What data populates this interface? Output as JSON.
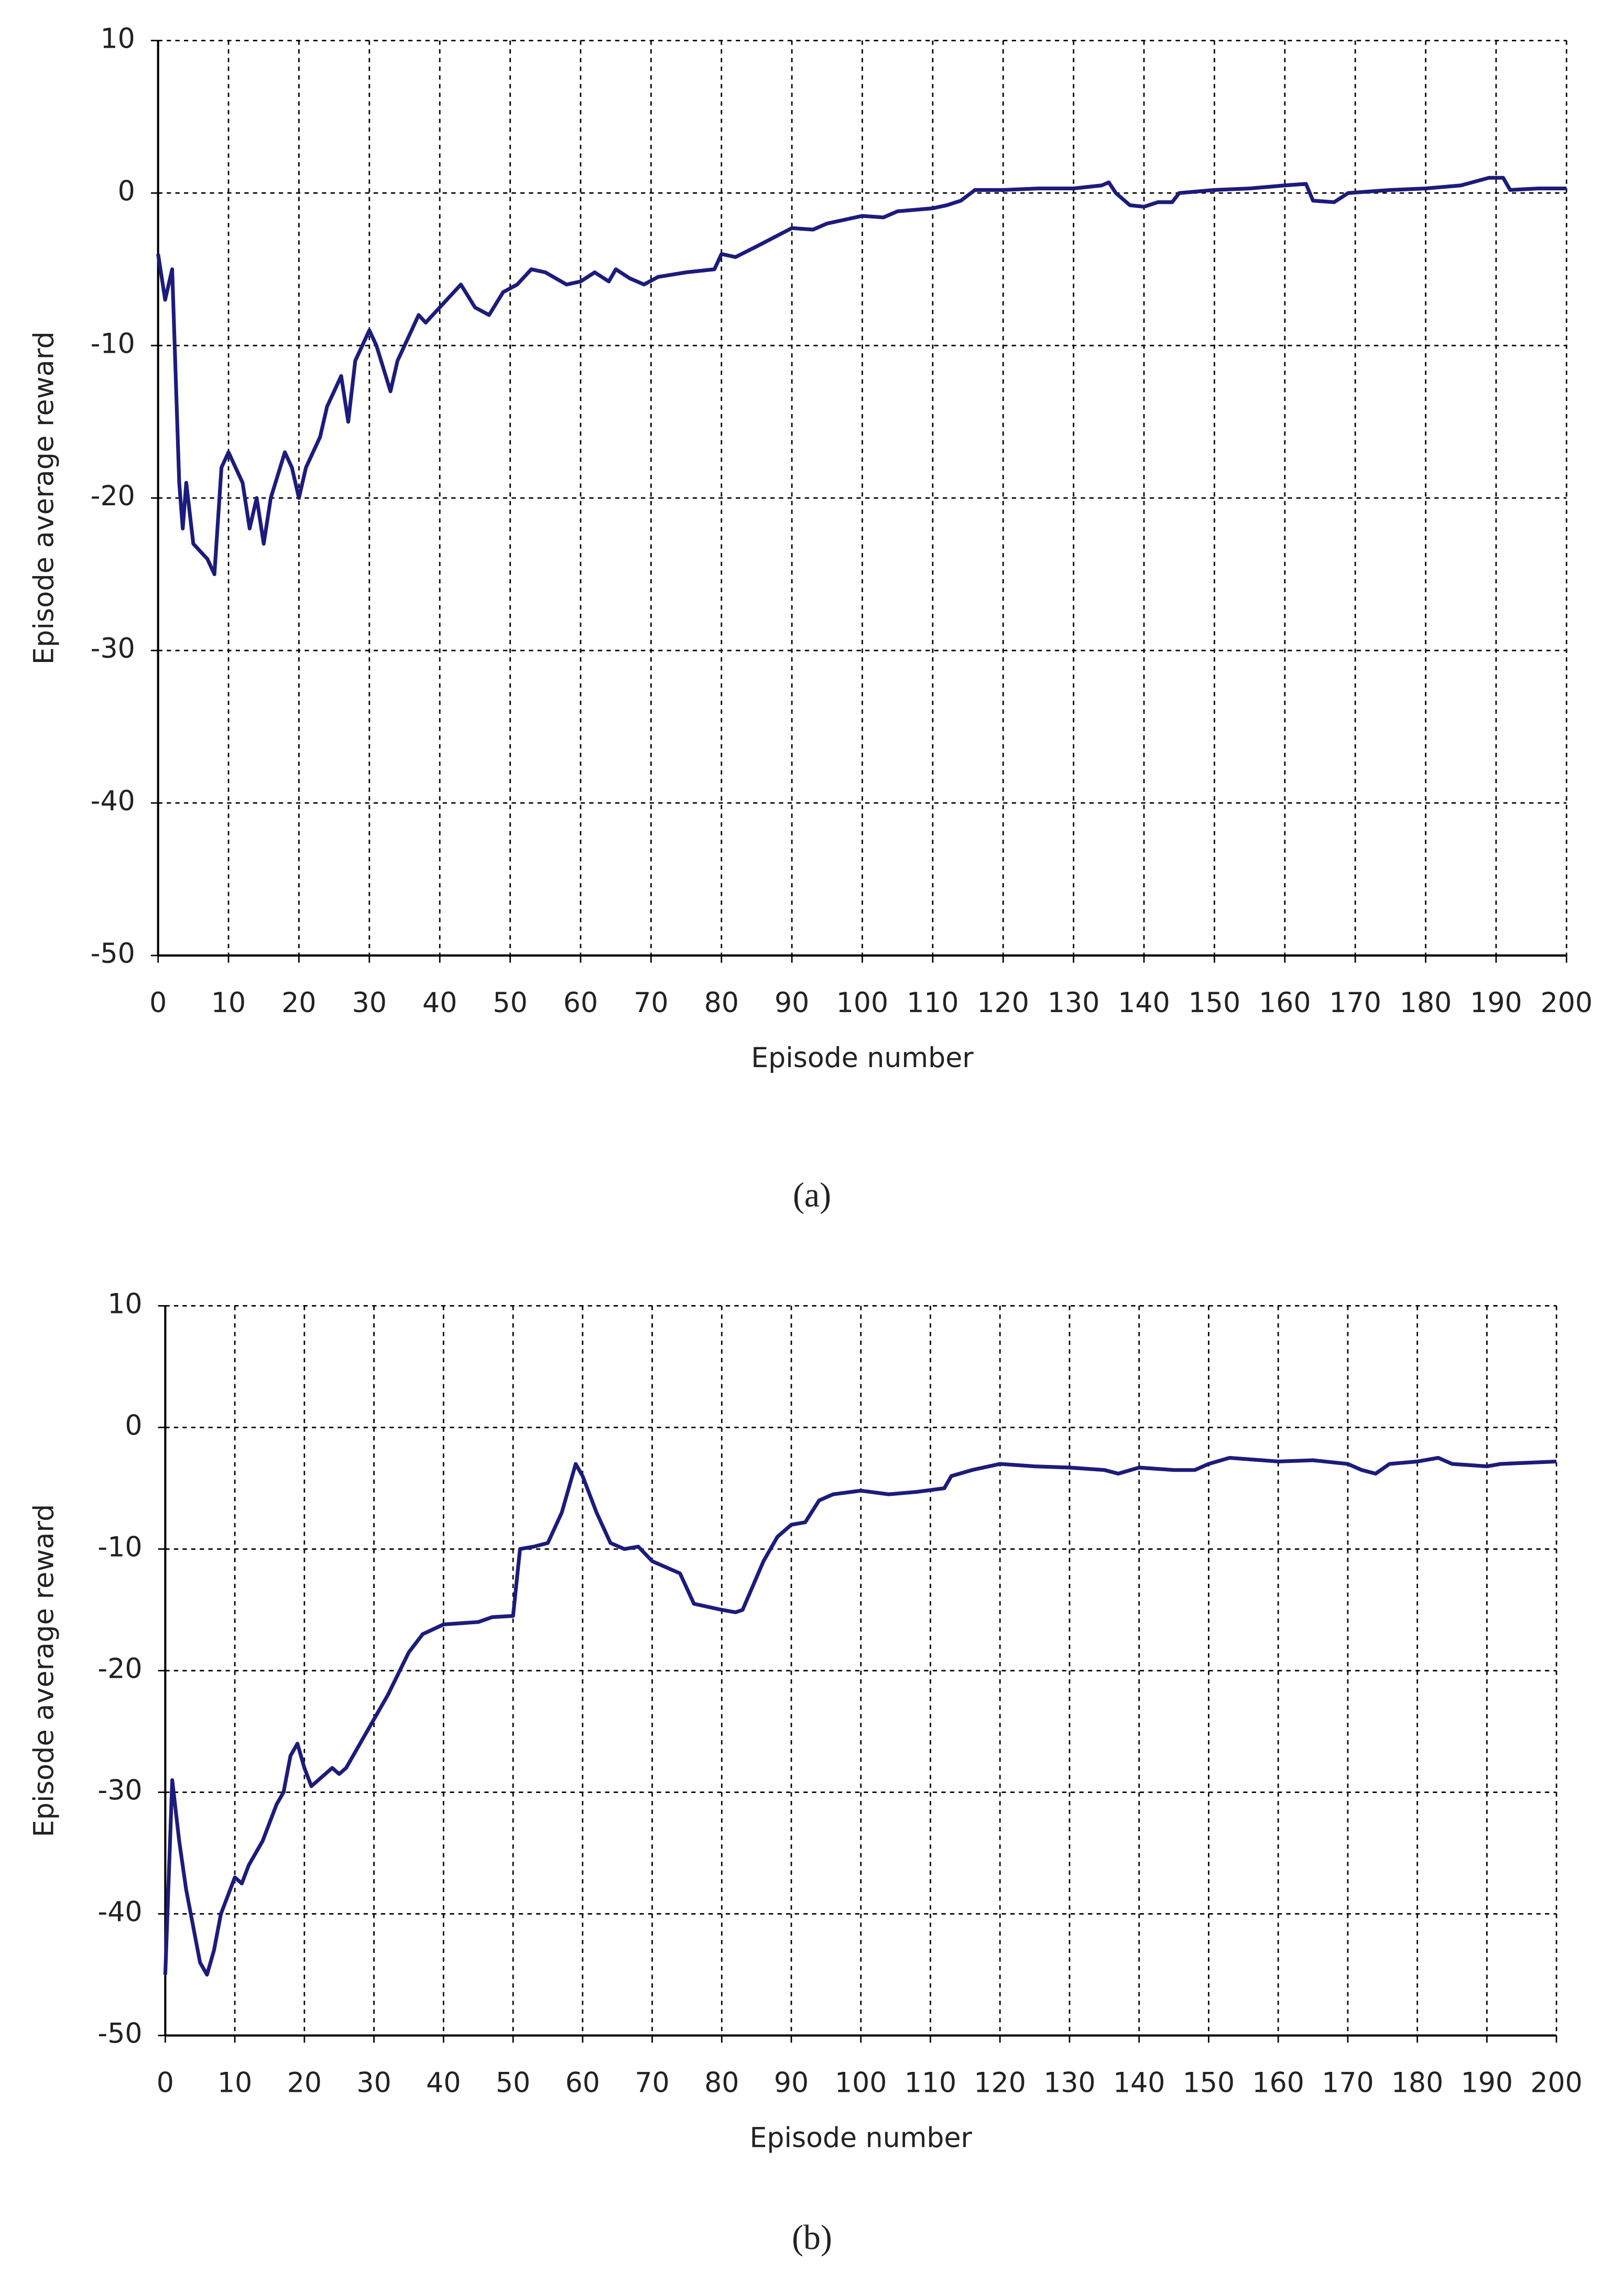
{
  "chart_data": [
    {
      "type": "line",
      "caption": "(a)",
      "xlabel": "Episode number",
      "ylabel": "Episode average reward",
      "xlim": [
        0,
        200
      ],
      "ylim": [
        -50,
        10
      ],
      "xticks": [
        0,
        10,
        20,
        30,
        40,
        50,
        60,
        70,
        80,
        90,
        100,
        110,
        120,
        130,
        140,
        150,
        160,
        170,
        180,
        190,
        200
      ],
      "yticks": [
        -50,
        -40,
        -30,
        -20,
        -10,
        0,
        10
      ],
      "grid": true,
      "color": "#1c1c7c",
      "x": [
        0,
        1,
        2,
        3,
        3.5,
        4,
        5,
        7,
        8,
        9,
        10,
        12,
        13,
        14,
        15,
        16,
        18,
        19,
        20,
        21,
        23,
        24,
        26,
        27,
        28,
        30,
        31,
        33,
        34,
        37,
        38,
        40,
        43,
        45,
        47,
        49,
        51,
        53,
        55,
        58,
        60,
        61,
        62,
        64,
        65,
        67,
        69,
        71,
        75,
        79,
        80,
        82,
        85,
        90,
        93,
        95,
        100,
        103,
        105,
        110,
        112,
        114,
        116,
        120,
        125,
        130,
        134,
        135,
        136,
        138,
        140,
        142,
        144,
        145,
        150,
        155,
        160,
        163,
        164,
        167,
        169,
        175,
        180,
        185,
        189,
        191,
        192,
        196,
        200
      ],
      "values": [
        -4,
        -7,
        -5,
        -19,
        -22,
        -19,
        -23,
        -24,
        -25,
        -18,
        -17,
        -19,
        -22,
        -20,
        -23,
        -20,
        -17,
        -18,
        -20,
        -18,
        -16,
        -14,
        -12,
        -15,
        -11,
        -9,
        -10,
        -13,
        -11,
        -8,
        -8.5,
        -7.5,
        -6,
        -7.5,
        -8,
        -6.5,
        -6,
        -5,
        -5.2,
        -6,
        -5.8,
        -5.5,
        -5.2,
        -5.8,
        -5,
        -5.6,
        -6,
        -5.5,
        -5.2,
        -5,
        -4,
        -4.2,
        -3.5,
        -2.3,
        -2.4,
        -2,
        -1.5,
        -1.6,
        -1.2,
        -1,
        -0.8,
        -0.5,
        0.2,
        0.2,
        0.3,
        0.3,
        0.5,
        0.7,
        0,
        -0.8,
        -0.9,
        -0.6,
        -0.6,
        0,
        0.2,
        0.3,
        0.5,
        0.6,
        -0.5,
        -0.6,
        0,
        0.2,
        0.3,
        0.5,
        1,
        1,
        0.2,
        0.3,
        0.3
      ]
    },
    {
      "type": "line",
      "caption": "(b)",
      "xlabel": "Episode number",
      "ylabel": "Episode average reward",
      "xlim": [
        0,
        200
      ],
      "ylim": [
        -50,
        10
      ],
      "xticks": [
        0,
        10,
        20,
        30,
        40,
        50,
        60,
        70,
        80,
        90,
        100,
        110,
        120,
        130,
        140,
        150,
        160,
        170,
        180,
        190,
        200
      ],
      "yticks": [
        -50,
        -40,
        -30,
        -20,
        -10,
        0,
        10
      ],
      "grid": true,
      "color": "#1c1c7c",
      "x": [
        0,
        1,
        2,
        3,
        5,
        6,
        7,
        8,
        10,
        11,
        12,
        14,
        16,
        17,
        18,
        19,
        20,
        21,
        23,
        24,
        25,
        26,
        28,
        30,
        32,
        35,
        37,
        40,
        45,
        47,
        50,
        51,
        53,
        55,
        57,
        58,
        59,
        60,
        62,
        64,
        66,
        68,
        70,
        74,
        76,
        80,
        82,
        83,
        86,
        88,
        90,
        92,
        94,
        96,
        100,
        104,
        108,
        112,
        113,
        116,
        120,
        125,
        130,
        135,
        137,
        140,
        145,
        148,
        150,
        153,
        160,
        165,
        170,
        172,
        174,
        176,
        180,
        183,
        185,
        190,
        192,
        200
      ],
      "values": [
        -45,
        -29,
        -34,
        -38,
        -44,
        -45,
        -43,
        -40,
        -37,
        -37.5,
        -36,
        -34,
        -31,
        -30,
        -27,
        -26,
        -28,
        -29.5,
        -28.5,
        -28,
        -28.5,
        -28,
        -26,
        -24,
        -22,
        -18.5,
        -17,
        -16.2,
        -16,
        -15.6,
        -15.5,
        -10,
        -9.8,
        -9.5,
        -7,
        -5,
        -3,
        -4,
        -7,
        -9.5,
        -10,
        -9.8,
        -11,
        -12,
        -14.5,
        -15,
        -15.2,
        -15,
        -11,
        -9,
        -8,
        -7.8,
        -6,
        -5.5,
        -5.2,
        -5.5,
        -5.3,
        -5,
        -4,
        -3.5,
        -3,
        -3.2,
        -3.3,
        -3.5,
        -3.8,
        -3.3,
        -3.5,
        -3.5,
        -3,
        -2.5,
        -2.8,
        -2.7,
        -3,
        -3.5,
        -3.8,
        -3,
        -2.8,
        -2.5,
        -3,
        -3.2,
        -3,
        -2.8
      ]
    }
  ]
}
